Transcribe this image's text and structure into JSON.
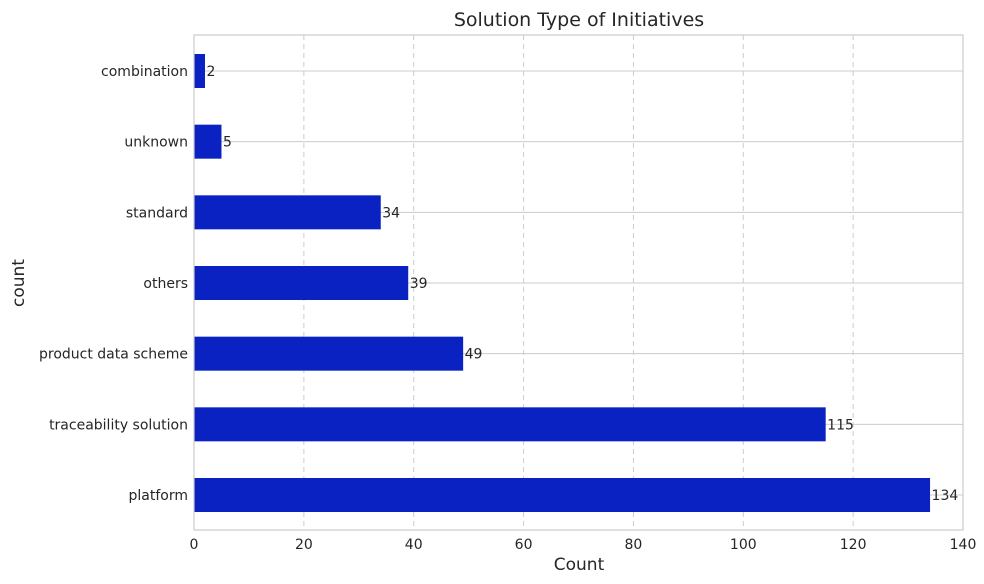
{
  "chart_data": {
    "type": "bar",
    "orientation": "horizontal",
    "title": "Solution Type of Initiatives",
    "xlabel": "Count",
    "ylabel": "count",
    "categories": [
      "combination",
      "unknown",
      "standard",
      "others",
      "product data scheme",
      "traceability solution",
      "platform"
    ],
    "values": [
      2,
      5,
      34,
      39,
      49,
      115,
      134
    ],
    "xlim": [
      0,
      140
    ],
    "xticks": [
      0,
      20,
      40,
      60,
      80,
      100,
      120,
      140
    ],
    "grid": true,
    "bar_color": "#0b22c2",
    "data_labels": true
  }
}
